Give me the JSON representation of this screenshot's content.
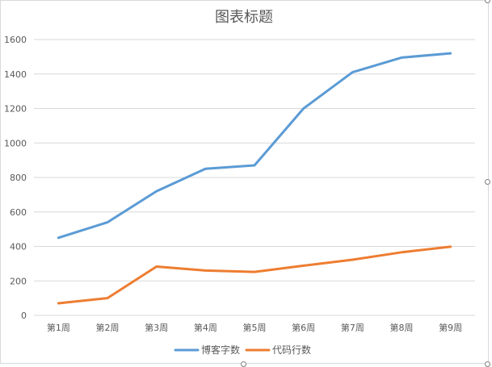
{
  "chart_data": {
    "type": "line",
    "title": "图表标题",
    "categories": [
      "第1周",
      "第2周",
      "第3周",
      "第4周",
      "第5周",
      "第6周",
      "第7周",
      "第8周",
      "第9周"
    ],
    "series": [
      {
        "name": "博客字数",
        "color": "#5b9bd5",
        "values": [
          450,
          540,
          720,
          850,
          870,
          1200,
          1410,
          1495,
          1520
        ]
      },
      {
        "name": "代码行数",
        "color": "#ed7d31",
        "values": [
          70,
          100,
          283,
          260,
          252,
          288,
          323,
          366,
          398
        ]
      }
    ],
    "ylim": [
      0,
      1600
    ],
    "yticks": [
      0,
      200,
      400,
      600,
      800,
      1000,
      1200,
      1400,
      1600
    ],
    "grid": true,
    "legend_position": "bottom"
  }
}
